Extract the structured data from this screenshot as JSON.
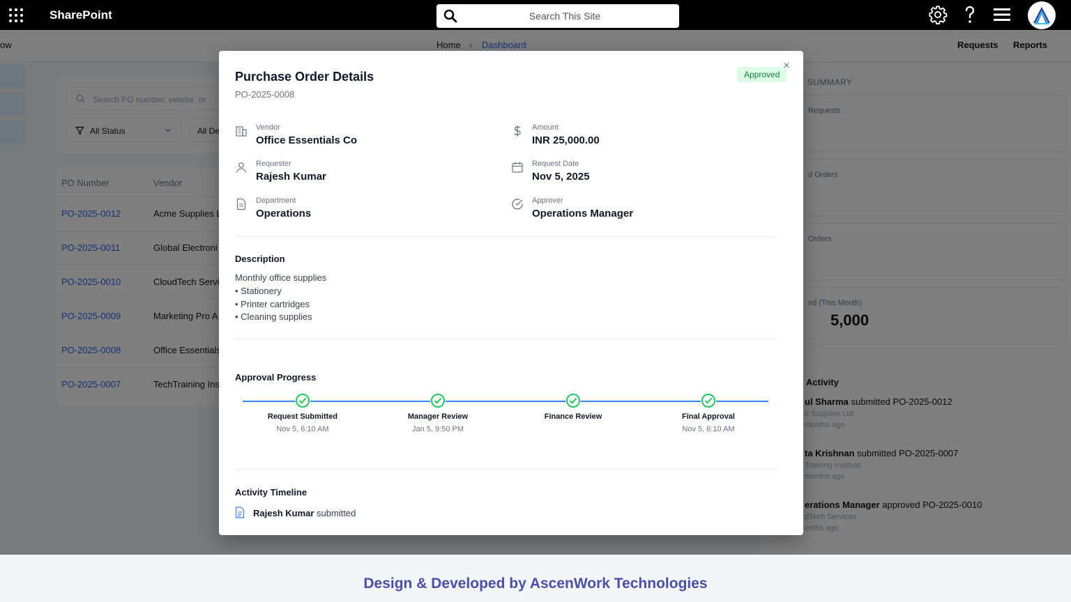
{
  "topbar": {
    "app_title": "SharePoint",
    "search_placeholder": "Search This Site"
  },
  "subnav": {
    "left_fragment": "ow",
    "breadcrumb_home": "Home",
    "breadcrumb_current": "Dashboard",
    "nav_requests": "Requests",
    "nav_reports": "Reports"
  },
  "filters": {
    "search_placeholder": "Search PO number, vendor, or",
    "status_select": "All Status",
    "dept_select": "All De"
  },
  "table": {
    "columns": [
      "PO Number",
      "Vendor"
    ],
    "rows": [
      {
        "po": "PO-2025-0012",
        "vendor": "Acme Supplies L"
      },
      {
        "po": "PO-2025-0011",
        "vendor": "Global Electroni"
      },
      {
        "po": "PO-2025-0010",
        "vendor": "CloudTech Servi"
      },
      {
        "po": "PO-2025-0009",
        "vendor": "Marketing Pro A"
      },
      {
        "po": "PO-2025-0008",
        "vendor": "Office Essentials"
      },
      {
        "po": "PO-2025-0007",
        "vendor": "TechTraining Inst"
      }
    ]
  },
  "summary_panel": {
    "title": "SUMMARY",
    "cards": [
      {
        "label": "Requests",
        "value": ""
      },
      {
        "label": "d Orders",
        "value": ""
      },
      {
        "label": "Orders",
        "value": ""
      },
      {
        "label": "nd (This Month)",
        "value": "5,000"
      }
    ],
    "activity_title": "Activity",
    "activities": [
      {
        "who": "ul Sharma",
        "what": " submitted PO-2025-0012",
        "sub": "e Supplies Ltd",
        "time": "months ago"
      },
      {
        "who": "ta Krishnan",
        "what": " submitted PO-2025-0007",
        "sub": "Training Institute",
        "time": "months ago"
      },
      {
        "who": "erations Manager",
        "what": " approved PO-2025-0010",
        "sub": "dTech Services",
        "time": "onths ago"
      }
    ]
  },
  "modal": {
    "title": "Purchase Order Details",
    "po_number": "PO-2025-0008",
    "status": "Approved",
    "close_glyph": "×",
    "fields": {
      "vendor": {
        "label": "Vendor",
        "value": "Office Essentials Co",
        "icon": "building-icon"
      },
      "amount": {
        "label": "Amount",
        "value": "INR 25,000.00",
        "icon": "dollar-icon"
      },
      "requester": {
        "label": "Requester",
        "value": "Rajesh Kumar",
        "icon": "user-icon"
      },
      "request_date": {
        "label": "Request Date",
        "value": "Nov 5, 2025",
        "icon": "calendar-icon"
      },
      "department": {
        "label": "Department",
        "value": "Operations",
        "icon": "document-icon"
      },
      "approver": {
        "label": "Approver",
        "value": "Operations Manager",
        "icon": "check-circle-icon"
      }
    },
    "description": {
      "title": "Description",
      "lines": [
        "Monthly office supplies",
        "• Stationery",
        "• Printer cartridges",
        "• Cleaning supplies"
      ]
    },
    "approval_progress": {
      "title": "Approval Progress",
      "steps": [
        {
          "label": "Request Submitted",
          "time": "Nov 5, 6:10 AM"
        },
        {
          "label": "Manager Review",
          "time": "Jan 5, 9:50 PM"
        },
        {
          "label": "Finance Review",
          "time": ""
        },
        {
          "label": "Final Approval",
          "time": "Nov 5, 6:10 AM"
        }
      ]
    },
    "activity_timeline": {
      "title": "Activity Timeline",
      "items": [
        {
          "who": "Rajesh Kumar",
          "action": " submitted"
        }
      ]
    }
  },
  "footer": {
    "text": "Design & Developed by AscenWork Technologies"
  },
  "colors": {
    "topbar": "#000000",
    "accent_blue": "#3b82f6",
    "approved_bg": "#dcfce7",
    "approved_text": "#15803d",
    "step_check": "#22c55e",
    "footer_text": "#4b4ea6"
  }
}
